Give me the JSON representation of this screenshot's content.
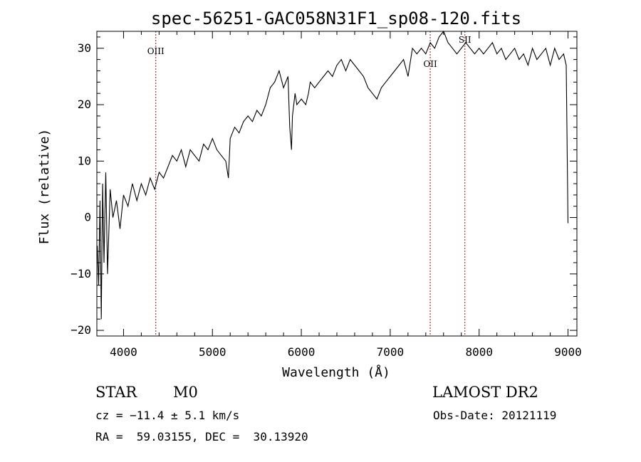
{
  "chart_data": {
    "type": "line",
    "title": "spec-56251-GAC058N31F1_sp08-120.fits",
    "xlabel": "Wavelength (Å)",
    "ylabel": "Flux (relative)",
    "xlim": [
      3700,
      9100
    ],
    "ylim": [
      -21,
      33
    ],
    "xticks": [
      4000,
      5000,
      6000,
      7000,
      8000,
      9000
    ],
    "yticks": [
      -20,
      -10,
      0,
      10,
      20,
      30
    ],
    "grid": false,
    "line_color": "#000000",
    "marker_color": "#8b1a1a",
    "series": [
      {
        "x": [
          3705,
          3720,
          3735,
          3750,
          3765,
          3780,
          3800,
          3820,
          3850,
          3880,
          3920,
          3960,
          4000,
          4050,
          4100,
          4150,
          4200,
          4250,
          4300,
          4350,
          4400,
          4450,
          4500,
          4550,
          4600,
          4650,
          4700,
          4750,
          4800,
          4850,
          4900,
          4950,
          5000,
          5050,
          5100,
          5150,
          5180,
          5200,
          5250,
          5300,
          5350,
          5400,
          5450,
          5500,
          5550,
          5600,
          5650,
          5700,
          5750,
          5800,
          5850,
          5870,
          5880,
          5890,
          5900,
          5930,
          5950,
          6000,
          6050,
          6080,
          6100,
          6150,
          6200,
          6250,
          6300,
          6350,
          6400,
          6450,
          6500,
          6550,
          6600,
          6650,
          6700,
          6750,
          6800,
          6850,
          6900,
          6950,
          7000,
          7050,
          7100,
          7150,
          7200,
          7250,
          7300,
          7350,
          7400,
          7450,
          7500,
          7550,
          7600,
          7650,
          7700,
          7750,
          7800,
          7850,
          7900,
          7950,
          8000,
          8050,
          8100,
          8150,
          8200,
          8250,
          8300,
          8350,
          8400,
          8450,
          8500,
          8550,
          8600,
          8650,
          8700,
          8750,
          8800,
          8850,
          8900,
          8950,
          8980,
          9000
        ],
        "y": [
          -5,
          -12,
          3,
          -18,
          6,
          -8,
          8,
          -10,
          5,
          0,
          3,
          -2,
          4,
          2,
          6,
          3,
          6,
          4,
          7,
          5,
          8,
          7,
          9,
          11,
          10,
          12,
          9,
          12,
          11,
          10,
          13,
          12,
          14,
          12,
          11,
          10,
          7,
          14,
          16,
          15,
          17,
          18,
          17,
          19,
          18,
          20,
          23,
          24,
          26,
          23,
          25,
          16,
          14,
          12,
          18,
          22,
          20,
          21,
          20,
          22,
          24,
          23,
          24,
          25,
          26,
          25,
          27,
          28,
          26,
          28,
          27,
          26,
          25,
          23,
          22,
          21,
          23,
          24,
          25,
          26,
          27,
          28,
          25,
          30,
          29,
          30,
          29,
          31,
          30,
          32,
          33,
          31,
          30,
          29,
          30,
          31,
          30,
          29,
          30,
          29,
          30,
          31,
          29,
          30,
          28,
          29,
          30,
          28,
          29,
          27,
          30,
          28,
          29,
          30,
          27,
          30,
          28,
          29,
          27,
          -1
        ]
      }
    ],
    "line_markers": [
      {
        "label": "OIII",
        "x": 4363
      },
      {
        "label": "OII",
        "x": 7450
      },
      {
        "label": "SII",
        "x": 7840
      }
    ]
  },
  "info": {
    "object_class": "STAR",
    "subclass": "M0",
    "survey": "LAMOST DR2",
    "velocity": "cz = −11.4 ± 5.1 km/s",
    "obs_date": "Obs-Date: 20121119",
    "coords": "RA =  59.03155, DEC =  30.13920"
  }
}
